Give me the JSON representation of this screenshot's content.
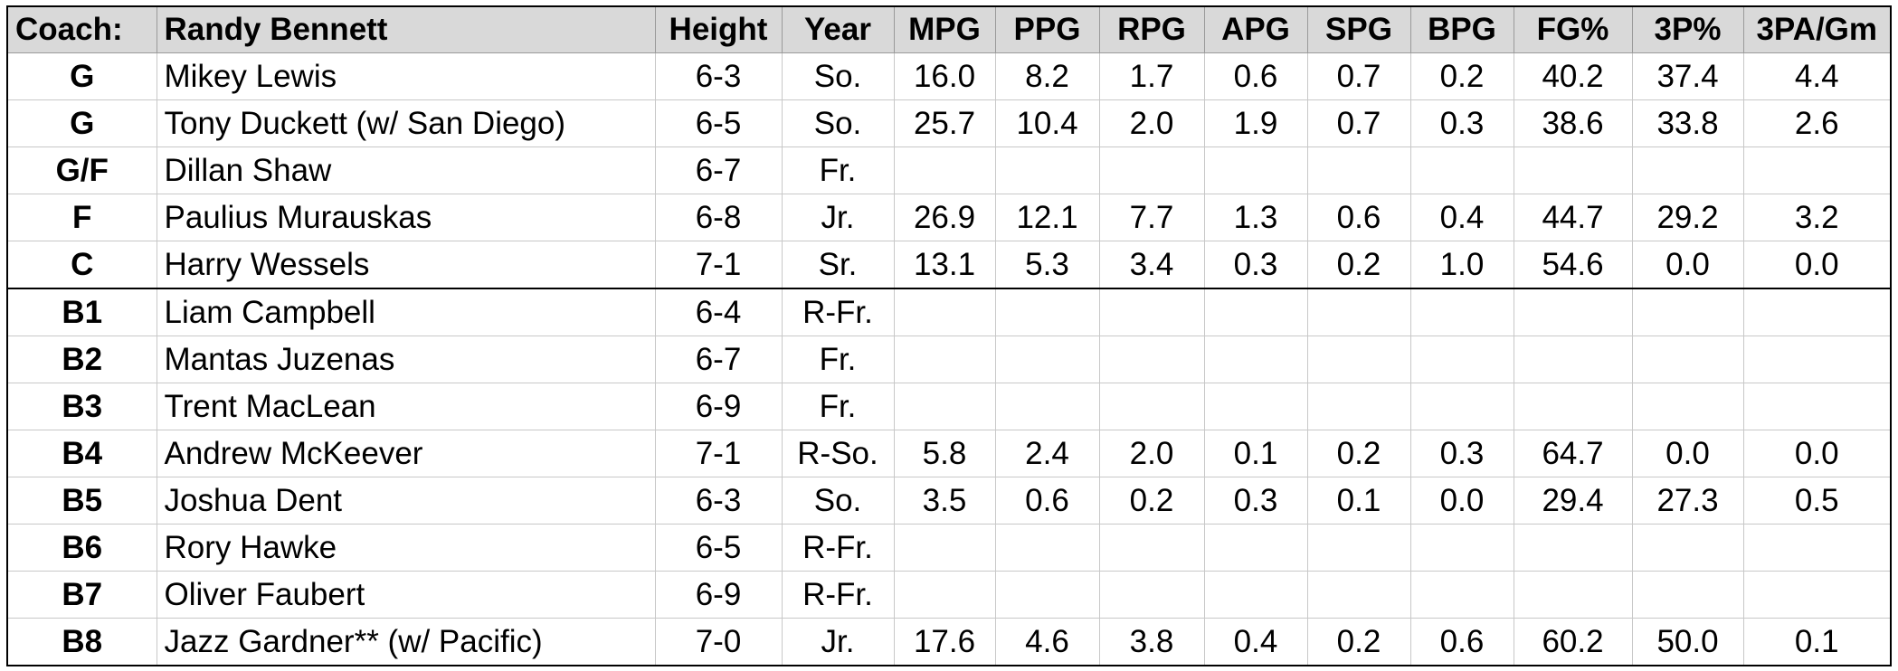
{
  "table": {
    "header": [
      "Coach:",
      "Randy Bennett",
      "Height",
      "Year",
      "MPG",
      "PPG",
      "RPG",
      "APG",
      "SPG",
      "BPG",
      "FG%",
      "3P%",
      "3PA/Gm"
    ],
    "rows": [
      [
        "G",
        "Mikey Lewis",
        "6-3",
        "So.",
        "16.0",
        "8.2",
        "1.7",
        "0.6",
        "0.7",
        "0.2",
        "40.2",
        "37.4",
        "4.4"
      ],
      [
        "G",
        "Tony Duckett (w/ San Diego)",
        "6-5",
        "So.",
        "25.7",
        "10.4",
        "2.0",
        "1.9",
        "0.7",
        "0.3",
        "38.6",
        "33.8",
        "2.6"
      ],
      [
        "G/F",
        "Dillan Shaw",
        "6-7",
        "Fr.",
        null,
        null,
        null,
        null,
        null,
        null,
        null,
        null,
        null
      ],
      [
        "F",
        "Paulius Murauskas",
        "6-8",
        "Jr.",
        "26.9",
        "12.1",
        "7.7",
        "1.3",
        "0.6",
        "0.4",
        "44.7",
        "29.2",
        "3.2"
      ],
      [
        "C",
        "Harry Wessels",
        "7-1",
        "Sr.",
        "13.1",
        "5.3",
        "3.4",
        "0.3",
        "0.2",
        "1.0",
        "54.6",
        "0.0",
        "0.0"
      ],
      [
        "B1",
        "Liam Campbell",
        "6-4",
        "R-Fr.",
        null,
        null,
        null,
        null,
        null,
        null,
        null,
        null,
        null
      ],
      [
        "B2",
        "Mantas Juzenas",
        "6-7",
        "Fr.",
        null,
        null,
        null,
        null,
        null,
        null,
        null,
        null,
        null
      ],
      [
        "B3",
        "Trent MacLean",
        "6-9",
        "Fr.",
        null,
        null,
        null,
        null,
        null,
        null,
        null,
        null,
        null
      ],
      [
        "B4",
        "Andrew McKeever",
        "7-1",
        "R-So.",
        "5.8",
        "2.4",
        "2.0",
        "0.1",
        "0.2",
        "0.3",
        "64.7",
        "0.0",
        "0.0"
      ],
      [
        "B5",
        "Joshua Dent",
        "6-3",
        "So.",
        "3.5",
        "0.6",
        "0.2",
        "0.3",
        "0.1",
        "0.0",
        "29.4",
        "27.3",
        "0.5"
      ],
      [
        "B6",
        "Rory Hawke",
        "6-5",
        "R-Fr.",
        null,
        null,
        null,
        null,
        null,
        null,
        null,
        null,
        null
      ],
      [
        "B7",
        "Oliver Faubert",
        "6-9",
        "R-Fr.",
        null,
        null,
        null,
        null,
        null,
        null,
        null,
        null,
        null
      ],
      [
        "B8",
        "Jazz Gardner** (w/ Pacific)",
        "7-0",
        "Jr.",
        "17.6",
        "4.6",
        "3.8",
        "0.4",
        "0.2",
        "0.6",
        "60.2",
        "50.0",
        "0.1"
      ]
    ]
  }
}
